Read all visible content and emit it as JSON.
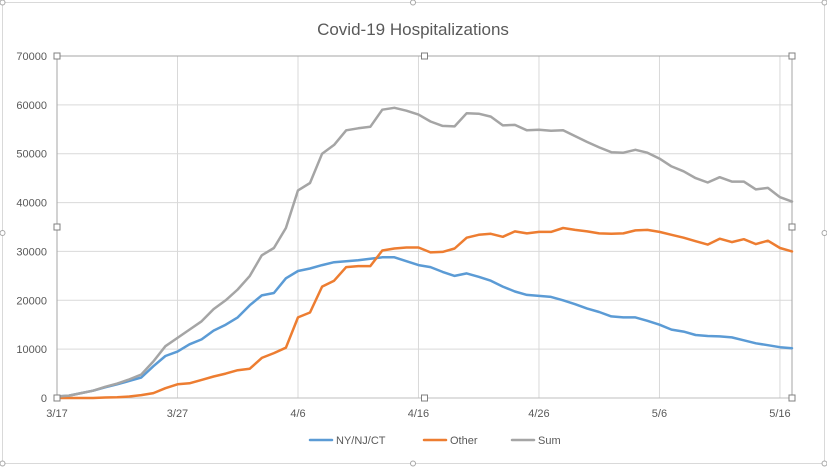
{
  "chart_data": {
    "type": "line",
    "title": "Covid-19 Hospitalizations",
    "xlabel": "",
    "ylabel": "",
    "ylim": [
      0,
      70000
    ],
    "y_ticks": [
      0,
      10000,
      20000,
      30000,
      40000,
      50000,
      60000,
      70000
    ],
    "x_ticks": [
      "3/17",
      "3/27",
      "4/6",
      "4/16",
      "4/26",
      "5/6",
      "5/16"
    ],
    "x": [
      "3/17",
      "3/18",
      "3/19",
      "3/20",
      "3/21",
      "3/22",
      "3/23",
      "3/24",
      "3/25",
      "3/26",
      "3/27",
      "3/28",
      "3/29",
      "3/30",
      "3/31",
      "4/1",
      "4/2",
      "4/3",
      "4/4",
      "4/5",
      "4/6",
      "4/7",
      "4/8",
      "4/9",
      "4/10",
      "4/11",
      "4/12",
      "4/13",
      "4/14",
      "4/15",
      "4/16",
      "4/17",
      "4/18",
      "4/19",
      "4/20",
      "4/21",
      "4/22",
      "4/23",
      "4/24",
      "4/25",
      "4/26",
      "4/27",
      "4/28",
      "4/29",
      "4/30",
      "5/1",
      "5/2",
      "5/3",
      "5/4",
      "5/5",
      "5/6",
      "5/7",
      "5/8",
      "5/9",
      "5/10",
      "5/11",
      "5/12",
      "5/13",
      "5/14",
      "5/15",
      "5/16",
      "5/17"
    ],
    "series": [
      {
        "name": "NY/NJ/CT",
        "color": "#5B9BD5",
        "values": [
          300,
          500,
          1000,
          1500,
          2200,
          2800,
          3500,
          4200,
          6500,
          8600,
          9500,
          11000,
          12000,
          13800,
          15000,
          16500,
          19000,
          21000,
          21500,
          24500,
          26000,
          26500,
          27200,
          27800,
          28000,
          28200,
          28500,
          28800,
          28800,
          28000,
          27200,
          26800,
          25800,
          25000,
          25500,
          24800,
          24000,
          22800,
          21800,
          21100,
          20900,
          20700,
          20000,
          19200,
          18300,
          17600,
          16700,
          16500,
          16500,
          15800,
          15000,
          14000,
          13600,
          12900,
          12700,
          12600,
          12400,
          11800,
          11200,
          10800,
          10400,
          10200
        ]
      },
      {
        "name": "Other",
        "color": "#ED7D31",
        "values": [
          0,
          0,
          0,
          0,
          100,
          150,
          300,
          600,
          1000,
          2000,
          2800,
          3000,
          3700,
          4400,
          5000,
          5700,
          6000,
          8200,
          9200,
          10300,
          16500,
          17500,
          22800,
          24000,
          26800,
          27000,
          27000,
          30200,
          30600,
          30800,
          30800,
          29800,
          29900,
          30600,
          32800,
          33400,
          33600,
          33000,
          34100,
          33700,
          34000,
          34000,
          34800,
          34400,
          34100,
          33700,
          33600,
          33700,
          34300,
          34400,
          34000,
          33400,
          32800,
          32100,
          31400,
          32600,
          31900,
          32500,
          31500,
          32200,
          30700,
          30000
        ]
      },
      {
        "name": "Sum",
        "color": "#A5A5A5",
        "values": [
          300,
          500,
          1000,
          1500,
          2300,
          2950,
          3800,
          4800,
          7500,
          10600,
          12300,
          14000,
          15700,
          18200,
          20000,
          22200,
          25000,
          29200,
          30700,
          34800,
          42500,
          44000,
          50000,
          51800,
          54800,
          55200,
          55500,
          59000,
          59400,
          58800,
          58000,
          56600,
          55700,
          55600,
          58300,
          58200,
          57600,
          55800,
          55900,
          54800,
          54900,
          54700,
          54800,
          53600,
          52400,
          51300,
          50300,
          50200,
          50800,
          50200,
          49000,
          47400,
          46400,
          45000,
          44100,
          45200,
          44300,
          44300,
          42700,
          43000,
          41100,
          40200
        ]
      }
    ],
    "legend_position": "bottom-center",
    "grid": true
  }
}
